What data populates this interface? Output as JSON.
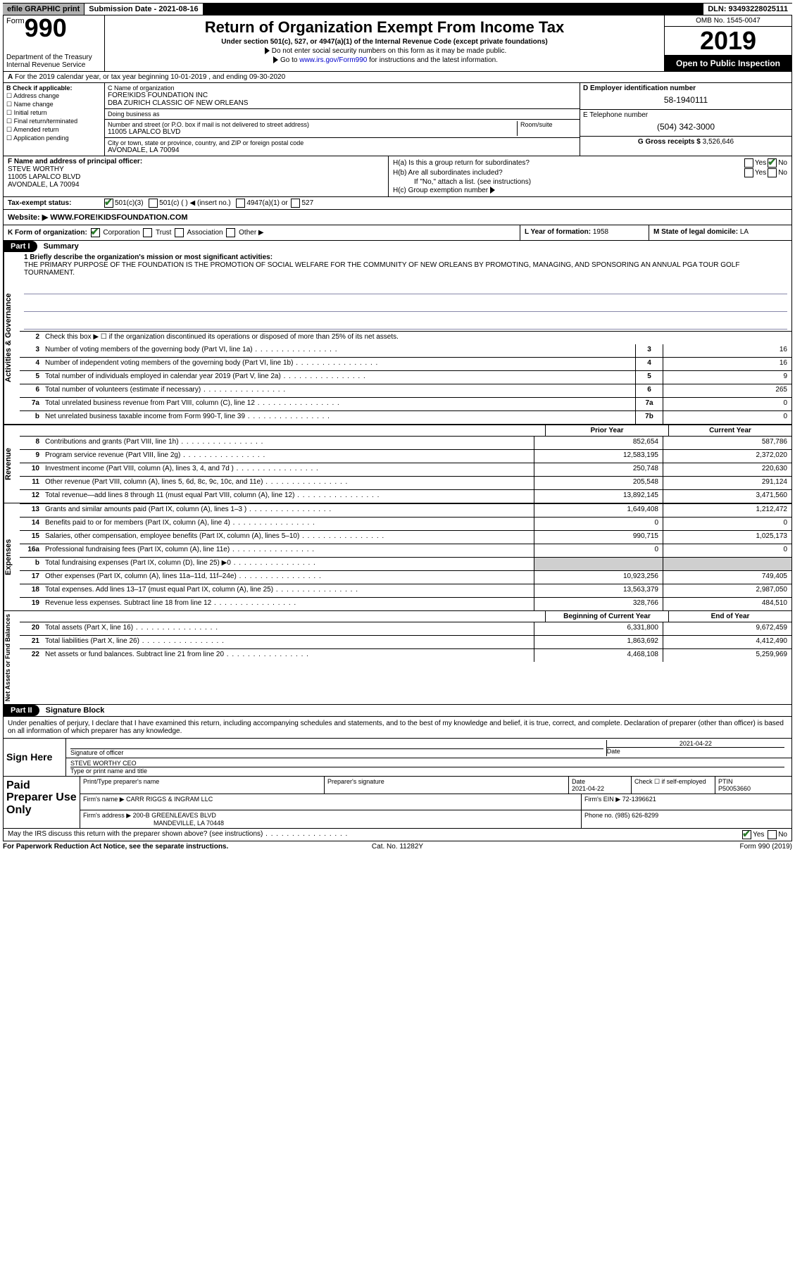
{
  "topbar": {
    "efile": "efile GRAPHIC print",
    "submission": "Submission Date - 2021-08-16",
    "dln": "DLN: 93493228025111"
  },
  "header": {
    "form_word": "Form",
    "form_num": "990",
    "dept": "Department of the Treasury\nInternal Revenue Service",
    "title": "Return of Organization Exempt From Income Tax",
    "subtitle": "Under section 501(c), 527, or 4947(a)(1) of the Internal Revenue Code (except private foundations)",
    "line1": "Do not enter social security numbers on this form as it may be made public.",
    "line2_pre": "Go to ",
    "line2_link": "www.irs.gov/Form990",
    "line2_post": " for instructions and the latest information.",
    "omb": "OMB No. 1545-0047",
    "year": "2019",
    "open": "Open to Public Inspection"
  },
  "row_a": "For the 2019 calendar year, or tax year beginning 10-01-2019   , and ending 09-30-2020",
  "box_b": {
    "label": "B Check if applicable:",
    "items": [
      "Address change",
      "Name change",
      "Initial return",
      "Final return/terminated",
      "Amended return",
      "Application pending"
    ]
  },
  "box_c": {
    "name_label": "C Name of organization",
    "name": "FORE!KIDS FOUNDATION INC\nDBA ZURICH CLASSIC OF NEW ORLEANS",
    "dba_label": "Doing business as",
    "street_label": "Number and street (or P.O. box if mail is not delivered to street address)",
    "room_label": "Room/suite",
    "street": "11005 LAPALCO BLVD",
    "city_label": "City or town, state or province, country, and ZIP or foreign postal code",
    "city": "AVONDALE, LA  70094"
  },
  "box_d": {
    "label": "D Employer identification number",
    "value": "58-1940111"
  },
  "box_e": {
    "label": "E Telephone number",
    "value": "(504) 342-3000"
  },
  "box_g": {
    "label": "G Gross receipts $",
    "value": "3,526,646"
  },
  "box_f": {
    "label": "F  Name and address of principal officer:",
    "name": "STEVE WORTHY",
    "addr1": "11005 LAPALCO BLVD",
    "addr2": "AVONDALE, LA  70094"
  },
  "box_h": {
    "a_label": "H(a)  Is this a group return for subordinates?",
    "a_yes": "Yes",
    "a_no": "No",
    "b_label": "H(b)  Are all subordinates included?",
    "b_yes": "Yes",
    "b_no": "No",
    "b_note": "If \"No,\" attach a list. (see instructions)",
    "c_label": "H(c)  Group exemption number"
  },
  "row_i": {
    "label": "Tax-exempt status:",
    "opt1": "501(c)(3)",
    "opt2": "501(c) (  ) ◀ (insert no.)",
    "opt3": "4947(a)(1) or",
    "opt4": "527"
  },
  "row_j": {
    "label": "Website: ▶",
    "value": "WWW.FORE!KIDSFOUNDATION.COM"
  },
  "row_k": {
    "label": "K Form of organization:",
    "corp": "Corporation",
    "trust": "Trust",
    "assoc": "Association",
    "other": "Other ▶",
    "l_label": "L Year of formation:",
    "l_value": "1958",
    "m_label": "M State of legal domicile:",
    "m_value": "LA"
  },
  "part1": {
    "tag": "Part I",
    "title": "Summary",
    "q1_label": "1  Briefly describe the organization's mission or most significant activities:",
    "mission": "THE PRIMARY PURPOSE OF THE FOUNDATION IS THE PROMOTION OF SOCIAL WELFARE FOR THE COMMUNITY OF NEW ORLEANS BY PROMOTING, MANAGING, AND SPONSORING AN ANNUAL PGA TOUR GOLF TOURNAMENT.",
    "q2": "Check this box ▶ ☐  if the organization discontinued its operations or disposed of more than 25% of its net assets.",
    "lines_ag": [
      {
        "n": "3",
        "t": "Number of voting members of the governing body (Part VI, line 1a)",
        "box": "3",
        "v": "16"
      },
      {
        "n": "4",
        "t": "Number of independent voting members of the governing body (Part VI, line 1b)",
        "box": "4",
        "v": "16"
      },
      {
        "n": "5",
        "t": "Total number of individuals employed in calendar year 2019 (Part V, line 2a)",
        "box": "5",
        "v": "9"
      },
      {
        "n": "6",
        "t": "Total number of volunteers (estimate if necessary)",
        "box": "6",
        "v": "265"
      },
      {
        "n": "7a",
        "t": "Total unrelated business revenue from Part VIII, column (C), line 12",
        "box": "7a",
        "v": "0"
      },
      {
        "n": "b",
        "t": "Net unrelated business taxable income from Form 990-T, line 39",
        "box": "7b",
        "v": "0"
      }
    ],
    "hdr_prior": "Prior Year",
    "hdr_current": "Current Year",
    "revenue_label": "Revenue",
    "revenue": [
      {
        "n": "8",
        "t": "Contributions and grants (Part VIII, line 1h)",
        "p": "852,654",
        "c": "587,786"
      },
      {
        "n": "9",
        "t": "Program service revenue (Part VIII, line 2g)",
        "p": "12,583,195",
        "c": "2,372,020"
      },
      {
        "n": "10",
        "t": "Investment income (Part VIII, column (A), lines 3, 4, and 7d )",
        "p": "250,748",
        "c": "220,630"
      },
      {
        "n": "11",
        "t": "Other revenue (Part VIII, column (A), lines 5, 6d, 8c, 9c, 10c, and 11e)",
        "p": "205,548",
        "c": "291,124"
      },
      {
        "n": "12",
        "t": "Total revenue—add lines 8 through 11 (must equal Part VIII, column (A), line 12)",
        "p": "13,892,145",
        "c": "3,471,560"
      }
    ],
    "expenses_label": "Expenses",
    "expenses": [
      {
        "n": "13",
        "t": "Grants and similar amounts paid (Part IX, column (A), lines 1–3 )",
        "p": "1,649,408",
        "c": "1,212,472"
      },
      {
        "n": "14",
        "t": "Benefits paid to or for members (Part IX, column (A), line 4)",
        "p": "0",
        "c": "0"
      },
      {
        "n": "15",
        "t": "Salaries, other compensation, employee benefits (Part IX, column (A), lines 5–10)",
        "p": "990,715",
        "c": "1,025,173"
      },
      {
        "n": "16a",
        "t": "Professional fundraising fees (Part IX, column (A), line 11e)",
        "p": "0",
        "c": "0"
      },
      {
        "n": "b",
        "t": "Total fundraising expenses (Part IX, column (D), line 25) ▶0",
        "p": "",
        "c": "",
        "gray": true
      },
      {
        "n": "17",
        "t": "Other expenses (Part IX, column (A), lines 11a–11d, 11f–24e)",
        "p": "10,923,256",
        "c": "749,405"
      },
      {
        "n": "18",
        "t": "Total expenses. Add lines 13–17 (must equal Part IX, column (A), line 25)",
        "p": "13,563,379",
        "c": "2,987,050"
      },
      {
        "n": "19",
        "t": "Revenue less expenses. Subtract line 18 from line 12",
        "p": "328,766",
        "c": "484,510"
      }
    ],
    "netassets_label": "Net Assets or Fund Balances",
    "hdr_beg": "Beginning of Current Year",
    "hdr_end": "End of Year",
    "netassets": [
      {
        "n": "20",
        "t": "Total assets (Part X, line 16)",
        "p": "6,331,800",
        "c": "9,672,459"
      },
      {
        "n": "21",
        "t": "Total liabilities (Part X, line 26)",
        "p": "1,863,692",
        "c": "4,412,490"
      },
      {
        "n": "22",
        "t": "Net assets or fund balances. Subtract line 21 from line 20",
        "p": "4,468,108",
        "c": "5,259,969"
      }
    ],
    "ag_label": "Activities & Governance"
  },
  "part2": {
    "tag": "Part II",
    "title": "Signature Block",
    "declaration": "Under penalties of perjury, I declare that I have examined this return, including accompanying schedules and statements, and to the best of my knowledge and belief, it is true, correct, and complete. Declaration of preparer (other than officer) is based on all information of which preparer has any knowledge."
  },
  "sign": {
    "label": "Sign Here",
    "sig_officer": "Signature of officer",
    "date_label": "Date",
    "date": "2021-04-22",
    "name": "STEVE WORTHY CEO",
    "type_label": "Type or print name and title"
  },
  "paid": {
    "label": "Paid Preparer Use Only",
    "h_name": "Print/Type preparer's name",
    "h_sig": "Preparer's signature",
    "h_date": "Date",
    "date": "2021-04-22",
    "h_check": "Check ☐ if self-employed",
    "h_ptin": "PTIN",
    "ptin": "P50053660",
    "firm_name_label": "Firm's name    ▶",
    "firm_name": "CARR RIGGS & INGRAM LLC",
    "firm_ein_label": "Firm's EIN ▶",
    "firm_ein": "72-1396621",
    "firm_addr_label": "Firm's address ▶",
    "firm_addr": "200-B GREENLEAVES BLVD",
    "firm_city": "MANDEVILLE, LA  70448",
    "phone_label": "Phone no.",
    "phone": "(985) 626-8299"
  },
  "irs_discuss": {
    "text": "May the IRS discuss this return with the preparer shown above? (see instructions)",
    "yes": "Yes",
    "no": "No"
  },
  "footer": {
    "left": "For Paperwork Reduction Act Notice, see the separate instructions.",
    "center": "Cat. No. 11282Y",
    "right": "Form 990 (2019)"
  }
}
